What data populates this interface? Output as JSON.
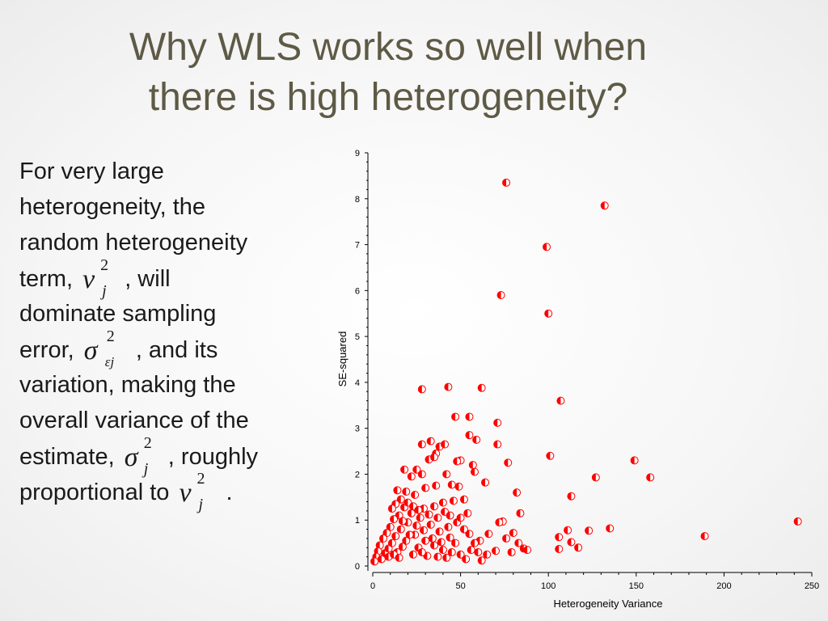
{
  "slide": {
    "title_lines": [
      "Why WLS works so well when",
      "there is high heterogeneity?"
    ],
    "body": {
      "l1": "For very large",
      "l2": "heterogeneity, the",
      "l3": "random heterogeneity",
      "l4a": "term,",
      "l4b": ", will",
      "l5": "dominate sampling",
      "l6a": "error,",
      "l6b": ", and its",
      "l7": "variation, making the",
      "l8": "overall variance of the",
      "l9a": "estimate,",
      "l9b": ", roughly",
      "l10a": "proportional to",
      "l10b": "."
    },
    "math": {
      "nu": "ν",
      "sigma": "σ",
      "sq": "2",
      "j": "j",
      "ej": "εj"
    }
  },
  "chart_data": {
    "type": "scatter",
    "title": "",
    "xlabel": "Heterogeneity Variance",
    "ylabel": "SE-squared",
    "xlim": [
      0,
      250
    ],
    "ylim": [
      0,
      9
    ],
    "xticks": [
      0,
      50,
      100,
      150,
      200,
      250
    ],
    "yticks": [
      0,
      1,
      2,
      3,
      4,
      5,
      6,
      7,
      8,
      9
    ],
    "grid": false,
    "marker_color": "#ff0000",
    "points": [
      [
        76,
        8.35
      ],
      [
        132,
        7.85
      ],
      [
        99,
        6.95
      ],
      [
        73,
        5.9
      ],
      [
        100,
        5.5
      ],
      [
        28,
        3.85
      ],
      [
        43,
        3.9
      ],
      [
        62,
        3.88
      ],
      [
        107,
        3.6
      ],
      [
        47,
        3.25
      ],
      [
        55,
        3.25
      ],
      [
        71,
        3.12
      ],
      [
        55,
        2.85
      ],
      [
        59,
        2.75
      ],
      [
        28,
        2.65
      ],
      [
        33,
        2.72
      ],
      [
        38,
        2.6
      ],
      [
        41,
        2.65
      ],
      [
        71,
        2.65
      ],
      [
        36,
        2.45
      ],
      [
        32,
        2.32
      ],
      [
        35,
        2.37
      ],
      [
        50,
        2.3
      ],
      [
        48,
        2.28
      ],
      [
        57,
        2.2
      ],
      [
        77,
        2.25
      ],
      [
        101,
        2.4
      ],
      [
        149,
        2.3
      ],
      [
        25,
        2.1
      ],
      [
        18,
        2.1
      ],
      [
        22,
        1.95
      ],
      [
        28,
        2.0
      ],
      [
        42,
        2.0
      ],
      [
        58,
        2.05
      ],
      [
        127,
        1.93
      ],
      [
        158,
        1.93
      ],
      [
        64,
        1.82
      ],
      [
        45,
        1.77
      ],
      [
        49,
        1.73
      ],
      [
        36,
        1.75
      ],
      [
        30,
        1.7
      ],
      [
        14,
        1.65
      ],
      [
        19,
        1.62
      ],
      [
        24,
        1.55
      ],
      [
        82,
        1.6
      ],
      [
        113,
        1.52
      ],
      [
        84,
        1.15
      ],
      [
        46,
        1.42
      ],
      [
        52,
        1.45
      ],
      [
        40,
        1.38
      ],
      [
        35,
        1.3
      ],
      [
        29,
        1.25
      ],
      [
        74,
        0.97
      ],
      [
        72,
        0.95
      ],
      [
        111,
        0.78
      ],
      [
        123,
        0.77
      ],
      [
        135,
        0.82
      ],
      [
        242,
        0.97
      ],
      [
        189,
        0.65
      ],
      [
        106,
        0.63
      ],
      [
        113,
        0.52
      ],
      [
        117,
        0.4
      ],
      [
        106,
        0.37
      ],
      [
        86,
        0.38
      ],
      [
        79,
        0.3
      ],
      [
        76,
        0.6
      ],
      [
        80,
        0.72
      ],
      [
        66,
        0.7
      ],
      [
        61,
        0.55
      ],
      [
        55,
        0.7
      ],
      [
        52,
        0.8
      ],
      [
        48,
        0.95
      ],
      [
        43,
        0.85
      ],
      [
        38,
        0.75
      ],
      [
        33,
        0.9
      ],
      [
        27,
        1.05
      ],
      [
        22,
        1.15
      ],
      [
        18,
        1.28
      ],
      [
        15,
        1.1
      ],
      [
        12,
        1.02
      ],
      [
        10,
        0.85
      ],
      [
        8,
        0.72
      ],
      [
        6,
        0.6
      ],
      [
        4,
        0.45
      ],
      [
        3,
        0.32
      ],
      [
        2,
        0.2
      ],
      [
        1,
        0.1
      ],
      [
        5,
        0.15
      ],
      [
        7,
        0.28
      ],
      [
        9,
        0.38
      ],
      [
        11,
        0.5
      ],
      [
        13,
        0.65
      ],
      [
        16,
        0.8
      ],
      [
        20,
        0.95
      ],
      [
        24,
        0.68
      ],
      [
        30,
        0.55
      ],
      [
        35,
        0.45
      ],
      [
        40,
        0.35
      ],
      [
        45,
        0.3
      ],
      [
        50,
        0.25
      ],
      [
        56,
        0.35
      ],
      [
        60,
        0.3
      ],
      [
        65,
        0.25
      ],
      [
        70,
        0.33
      ],
      [
        83,
        0.5
      ],
      [
        88,
        0.35
      ],
      [
        14,
        0.3
      ],
      [
        17,
        0.42
      ],
      [
        19,
        0.55
      ],
      [
        21,
        0.68
      ],
      [
        26,
        0.4
      ],
      [
        31,
        0.22
      ],
      [
        37,
        0.2
      ],
      [
        42,
        0.18
      ],
      [
        53,
        0.15
      ],
      [
        62,
        0.12
      ],
      [
        9,
        0.2
      ],
      [
        12,
        0.25
      ],
      [
        15,
        0.18
      ],
      [
        23,
        0.25
      ],
      [
        28,
        0.3
      ],
      [
        34,
        0.6
      ],
      [
        39,
        0.52
      ],
      [
        44,
        0.62
      ],
      [
        47,
        0.5
      ],
      [
        58,
        0.5
      ],
      [
        16,
        1.45
      ],
      [
        20,
        1.38
      ],
      [
        23,
        1.3
      ],
      [
        26,
        1.22
      ],
      [
        13,
        1.35
      ],
      [
        11,
        1.25
      ],
      [
        17,
        0.98
      ],
      [
        25,
        0.88
      ],
      [
        29,
        0.78
      ],
      [
        32,
        1.12
      ],
      [
        37,
        1.05
      ],
      [
        41,
        1.18
      ],
      [
        44,
        1.1
      ],
      [
        50,
        1.05
      ],
      [
        54,
        1.15
      ]
    ]
  }
}
